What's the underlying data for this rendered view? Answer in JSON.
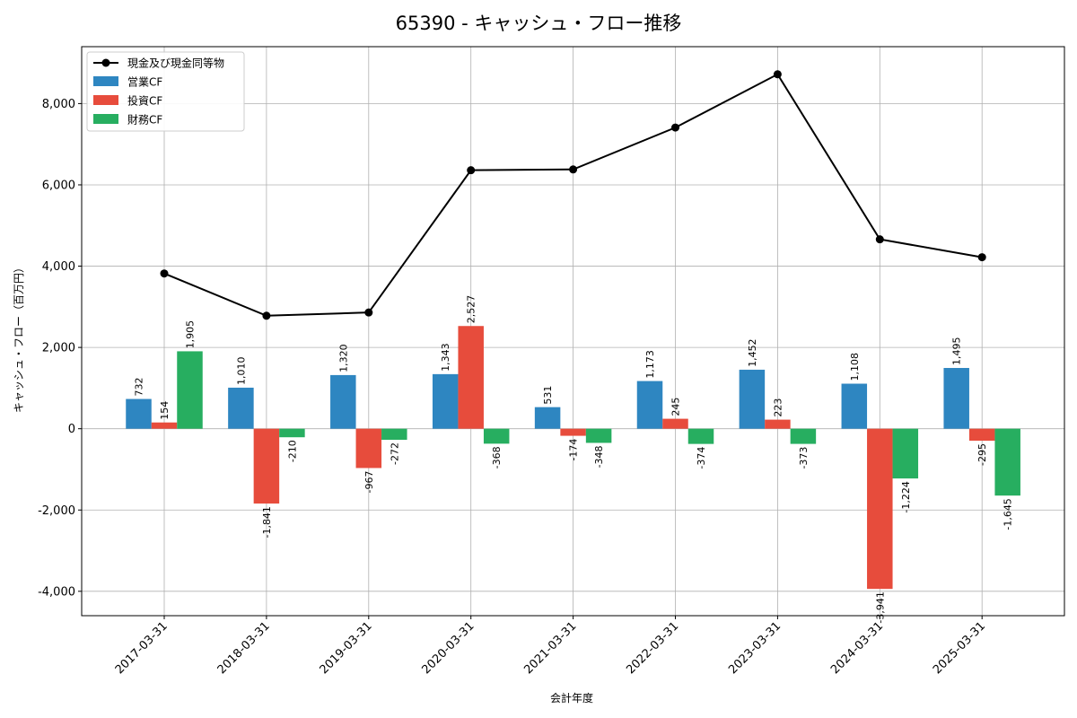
{
  "chart_data": {
    "type": "bar",
    "title": "65390 - キャッシュ・フロー推移",
    "xlabel": "会計年度",
    "ylabel": "キャッシュ・フロー（百万円）",
    "categories": [
      "2017-03-31",
      "2018-03-31",
      "2019-03-31",
      "2020-03-31",
      "2021-03-31",
      "2022-03-31",
      "2023-03-31",
      "2024-03-31",
      "2025-03-31"
    ],
    "ylim": [
      -4600,
      9400
    ],
    "yticks": [
      -4000,
      -2000,
      0,
      2000,
      4000,
      6000,
      8000
    ],
    "ytick_labels": [
      "-4,000",
      "-2,000",
      "0",
      "2,000",
      "4,000",
      "6,000",
      "8,000"
    ],
    "grid": true,
    "legend_position": "top-left",
    "series": [
      {
        "name": "営業CF",
        "kind": "bar",
        "color": "#2e86c1",
        "values": [
          732,
          1010,
          1320,
          1343,
          531,
          1173,
          1452,
          1108,
          1495
        ],
        "labels": [
          "732",
          "1,010",
          "1,320",
          "1,343",
          "531",
          "1,173",
          "1,452",
          "1,108",
          "1,495"
        ]
      },
      {
        "name": "投資CF",
        "kind": "bar",
        "color": "#e74c3c",
        "values": [
          154,
          -1841,
          -967,
          2527,
          -174,
          245,
          223,
          -3941,
          -295
        ],
        "labels": [
          "154",
          "-1,841",
          "-967",
          "2,527",
          "-174",
          "245",
          "223",
          "-3,941",
          "-295"
        ]
      },
      {
        "name": "財務CF",
        "kind": "bar",
        "color": "#27ae60",
        "values": [
          1905,
          -210,
          -272,
          -368,
          -348,
          -374,
          -373,
          -1224,
          -1645
        ],
        "labels": [
          "1,905",
          "-210",
          "-272",
          "-368",
          "-348",
          "-374",
          "-373",
          "-1,224",
          "-1,645"
        ]
      },
      {
        "name": "現金及び現金同等物",
        "kind": "line",
        "color": "#000000",
        "values": [
          3820,
          2780,
          2860,
          6360,
          6380,
          7410,
          8720,
          4660,
          4220
        ]
      }
    ]
  }
}
